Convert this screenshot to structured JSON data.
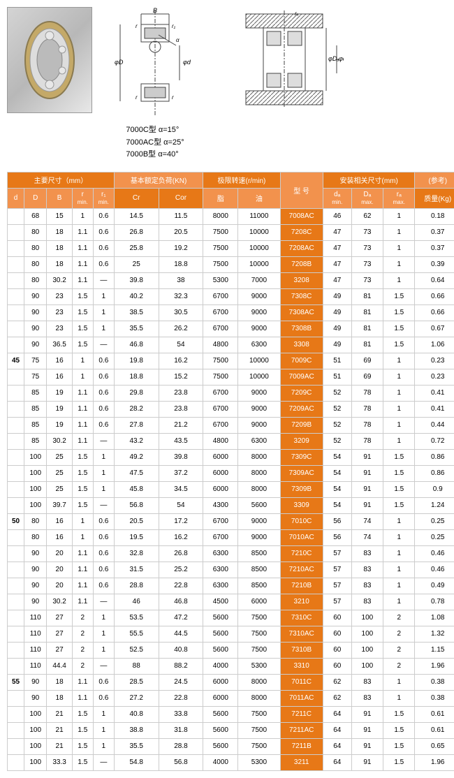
{
  "angles": [
    {
      "type": "7000C型",
      "angle": "α=15°"
    },
    {
      "type": "7000AC型",
      "angle": "α=25°"
    },
    {
      "type": "7000B型",
      "angle": "α=40°"
    }
  ],
  "headerGroups": {
    "g1": "主要尺寸（mm）",
    "g2": "基本额定负荷(KN)",
    "g3": "极限转速(r/min)",
    "g4": "型 号",
    "g5": "安装相关尺寸(mm)",
    "g6": "(参考)"
  },
  "headers": {
    "d": "d",
    "D": "D",
    "B": "B",
    "rmin": "r",
    "r1min": "r₁",
    "cr": "Cr",
    "cor": "Cor",
    "grease": "脂",
    "oil": "油",
    "damin": "dₐ",
    "Damax": "Dₐ",
    "ramax": "rₐ",
    "mass": "质量(Kg)"
  },
  "sublabels": {
    "min": "min.",
    "max": "max."
  },
  "rows": [
    {
      "d": "",
      "D": "68",
      "B": "15",
      "r": "1",
      "r1": "0.6",
      "cr": "14.5",
      "cor": "11.5",
      "g": "8000",
      "o": "11000",
      "m": "7008AC",
      "da": "46",
      "Da": "62",
      "ra": "1",
      "kg": "0.18"
    },
    {
      "d": "",
      "D": "80",
      "B": "18",
      "r": "1.1",
      "r1": "0.6",
      "cr": "26.8",
      "cor": "20.5",
      "g": "7500",
      "o": "10000",
      "m": "7208C",
      "da": "47",
      "Da": "73",
      "ra": "1",
      "kg": "0.37"
    },
    {
      "d": "",
      "D": "80",
      "B": "18",
      "r": "1.1",
      "r1": "0.6",
      "cr": "25.8",
      "cor": "19.2",
      "g": "7500",
      "o": "10000",
      "m": "7208AC",
      "da": "47",
      "Da": "73",
      "ra": "1",
      "kg": "0.37"
    },
    {
      "d": "",
      "D": "80",
      "B": "18",
      "r": "1.1",
      "r1": "0.6",
      "cr": "25",
      "cor": "18.8",
      "g": "7500",
      "o": "10000",
      "m": "7208B",
      "da": "47",
      "Da": "73",
      "ra": "1",
      "kg": "0.39"
    },
    {
      "d": "",
      "D": "80",
      "B": "30.2",
      "r": "1.1",
      "r1": "—",
      "cr": "39.8",
      "cor": "38",
      "g": "5300",
      "o": "7000",
      "m": "3208",
      "da": "47",
      "Da": "73",
      "ra": "1",
      "kg": "0.64"
    },
    {
      "d": "",
      "D": "90",
      "B": "23",
      "r": "1.5",
      "r1": "1",
      "cr": "40.2",
      "cor": "32.3",
      "g": "6700",
      "o": "9000",
      "m": "7308C",
      "da": "49",
      "Da": "81",
      "ra": "1.5",
      "kg": "0.66"
    },
    {
      "d": "",
      "D": "90",
      "B": "23",
      "r": "1.5",
      "r1": "1",
      "cr": "38.5",
      "cor": "30.5",
      "g": "6700",
      "o": "9000",
      "m": "7308AC",
      "da": "49",
      "Da": "81",
      "ra": "1.5",
      "kg": "0.66"
    },
    {
      "d": "",
      "D": "90",
      "B": "23",
      "r": "1.5",
      "r1": "1",
      "cr": "35.5",
      "cor": "26.2",
      "g": "6700",
      "o": "9000",
      "m": "7308B",
      "da": "49",
      "Da": "81",
      "ra": "1.5",
      "kg": "0.67"
    },
    {
      "d": "",
      "D": "90",
      "B": "36.5",
      "r": "1.5",
      "r1": "—",
      "cr": "46.8",
      "cor": "54",
      "g": "4800",
      "o": "6300",
      "m": "3308",
      "da": "49",
      "Da": "81",
      "ra": "1.5",
      "kg": "1.06"
    },
    {
      "d": "45",
      "D": "75",
      "B": "16",
      "r": "1",
      "r1": "0.6",
      "cr": "19.8",
      "cor": "16.2",
      "g": "7500",
      "o": "10000",
      "m": "7009C",
      "da": "51",
      "Da": "69",
      "ra": "1",
      "kg": "0.23"
    },
    {
      "d": "",
      "D": "75",
      "B": "16",
      "r": "1",
      "r1": "0.6",
      "cr": "18.8",
      "cor": "15.2",
      "g": "7500",
      "o": "10000",
      "m": "7009AC",
      "da": "51",
      "Da": "69",
      "ra": "1",
      "kg": "0.23"
    },
    {
      "d": "",
      "D": "85",
      "B": "19",
      "r": "1.1",
      "r1": "0.6",
      "cr": "29.8",
      "cor": "23.8",
      "g": "6700",
      "o": "9000",
      "m": "7209C",
      "da": "52",
      "Da": "78",
      "ra": "1",
      "kg": "0.41"
    },
    {
      "d": "",
      "D": "85",
      "B": "19",
      "r": "1.1",
      "r1": "0.6",
      "cr": "28.2",
      "cor": "23.8",
      "g": "6700",
      "o": "9000",
      "m": "7209AC",
      "da": "52",
      "Da": "78",
      "ra": "1",
      "kg": "0.41"
    },
    {
      "d": "",
      "D": "85",
      "B": "19",
      "r": "1.1",
      "r1": "0.6",
      "cr": "27.8",
      "cor": "21.2",
      "g": "6700",
      "o": "9000",
      "m": "7209B",
      "da": "52",
      "Da": "78",
      "ra": "1",
      "kg": "0.44"
    },
    {
      "d": "",
      "D": "85",
      "B": "30.2",
      "r": "1.1",
      "r1": "—",
      "cr": "43.2",
      "cor": "43.5",
      "g": "4800",
      "o": "6300",
      "m": "3209",
      "da": "52",
      "Da": "78",
      "ra": "1",
      "kg": "0.72"
    },
    {
      "d": "",
      "D": "100",
      "B": "25",
      "r": "1.5",
      "r1": "1",
      "cr": "49.2",
      "cor": "39.8",
      "g": "6000",
      "o": "8000",
      "m": "7309C",
      "da": "54",
      "Da": "91",
      "ra": "1.5",
      "kg": "0.86"
    },
    {
      "d": "",
      "D": "100",
      "B": "25",
      "r": "1.5",
      "r1": "1",
      "cr": "47.5",
      "cor": "37.2",
      "g": "6000",
      "o": "8000",
      "m": "7309AC",
      "da": "54",
      "Da": "91",
      "ra": "1.5",
      "kg": "0.86"
    },
    {
      "d": "",
      "D": "100",
      "B": "25",
      "r": "1.5",
      "r1": "1",
      "cr": "45.8",
      "cor": "34.5",
      "g": "6000",
      "o": "8000",
      "m": "7309B",
      "da": "54",
      "Da": "91",
      "ra": "1.5",
      "kg": "0.9"
    },
    {
      "d": "",
      "D": "100",
      "B": "39.7",
      "r": "1.5",
      "r1": "—",
      "cr": "56.8",
      "cor": "54",
      "g": "4300",
      "o": "5600",
      "m": "3309",
      "da": "54",
      "Da": "91",
      "ra": "1.5",
      "kg": "1.24"
    },
    {
      "d": "50",
      "D": "80",
      "B": "16",
      "r": "1",
      "r1": "0.6",
      "cr": "20.5",
      "cor": "17.2",
      "g": "6700",
      "o": "9000",
      "m": "7010C",
      "da": "56",
      "Da": "74",
      "ra": "1",
      "kg": "0.25"
    },
    {
      "d": "",
      "D": "80",
      "B": "16",
      "r": "1",
      "r1": "0.6",
      "cr": "19.5",
      "cor": "16.2",
      "g": "6700",
      "o": "9000",
      "m": "7010AC",
      "da": "56",
      "Da": "74",
      "ra": "1",
      "kg": "0.25"
    },
    {
      "d": "",
      "D": "90",
      "B": "20",
      "r": "1.1",
      "r1": "0.6",
      "cr": "32.8",
      "cor": "26.8",
      "g": "6300",
      "o": "8500",
      "m": "7210C",
      "da": "57",
      "Da": "83",
      "ra": "1",
      "kg": "0.46"
    },
    {
      "d": "",
      "D": "90",
      "B": "20",
      "r": "1.1",
      "r1": "0.6",
      "cr": "31.5",
      "cor": "25.2",
      "g": "6300",
      "o": "8500",
      "m": "7210AC",
      "da": "57",
      "Da": "83",
      "ra": "1",
      "kg": "0.46"
    },
    {
      "d": "",
      "D": "90",
      "B": "20",
      "r": "1.1",
      "r1": "0.6",
      "cr": "28.8",
      "cor": "22.8",
      "g": "6300",
      "o": "8500",
      "m": "7210B",
      "da": "57",
      "Da": "83",
      "ra": "1",
      "kg": "0.49"
    },
    {
      "d": "",
      "D": "90",
      "B": "30.2",
      "r": "1.1",
      "r1": "—",
      "cr": "46",
      "cor": "46.8",
      "g": "4500",
      "o": "6000",
      "m": "3210",
      "da": "57",
      "Da": "83",
      "ra": "1",
      "kg": "0.78"
    },
    {
      "d": "",
      "D": "110",
      "B": "27",
      "r": "2",
      "r1": "1",
      "cr": "53.5",
      "cor": "47.2",
      "g": "5600",
      "o": "7500",
      "m": "7310C",
      "da": "60",
      "Da": "100",
      "ra": "2",
      "kg": "1.08"
    },
    {
      "d": "",
      "D": "110",
      "B": "27",
      "r": "2",
      "r1": "1",
      "cr": "55.5",
      "cor": "44.5",
      "g": "5600",
      "o": "7500",
      "m": "7310AC",
      "da": "60",
      "Da": "100",
      "ra": "2",
      "kg": "1.32"
    },
    {
      "d": "",
      "D": "110",
      "B": "27",
      "r": "2",
      "r1": "1",
      "cr": "52.5",
      "cor": "40.8",
      "g": "5600",
      "o": "7500",
      "m": "7310B",
      "da": "60",
      "Da": "100",
      "ra": "2",
      "kg": "1.15"
    },
    {
      "d": "",
      "D": "110",
      "B": "44.4",
      "r": "2",
      "r1": "—",
      "cr": "88",
      "cor": "88.2",
      "g": "4000",
      "o": "5300",
      "m": "3310",
      "da": "60",
      "Da": "100",
      "ra": "2",
      "kg": "1.96"
    },
    {
      "d": "55",
      "D": "90",
      "B": "18",
      "r": "1.1",
      "r1": "0.6",
      "cr": "28.5",
      "cor": "24.5",
      "g": "6000",
      "o": "8000",
      "m": "7011C",
      "da": "62",
      "Da": "83",
      "ra": "1",
      "kg": "0.38"
    },
    {
      "d": "",
      "D": "90",
      "B": "18",
      "r": "1.1",
      "r1": "0.6",
      "cr": "27.2",
      "cor": "22.8",
      "g": "6000",
      "o": "8000",
      "m": "7011AC",
      "da": "62",
      "Da": "83",
      "ra": "1",
      "kg": "0.38"
    },
    {
      "d": "",
      "D": "100",
      "B": "21",
      "r": "1.5",
      "r1": "1",
      "cr": "40.8",
      "cor": "33.8",
      "g": "5600",
      "o": "7500",
      "m": "7211C",
      "da": "64",
      "Da": "91",
      "ra": "1.5",
      "kg": "0.61"
    },
    {
      "d": "",
      "D": "100",
      "B": "21",
      "r": "1.5",
      "r1": "1",
      "cr": "38.8",
      "cor": "31.8",
      "g": "5600",
      "o": "7500",
      "m": "7211AC",
      "da": "64",
      "Da": "91",
      "ra": "1.5",
      "kg": "0.61"
    },
    {
      "d": "",
      "D": "100",
      "B": "21",
      "r": "1.5",
      "r1": "1",
      "cr": "35.5",
      "cor": "28.8",
      "g": "5600",
      "o": "7500",
      "m": "7211B",
      "da": "64",
      "Da": "91",
      "ra": "1.5",
      "kg": "0.65"
    },
    {
      "d": "",
      "D": "100",
      "B": "33.3",
      "r": "1.5",
      "r1": "—",
      "cr": "54.8",
      "cor": "56.8",
      "g": "4000",
      "o": "5300",
      "m": "3211",
      "da": "64",
      "Da": "91",
      "ra": "1.5",
      "kg": "1.96"
    }
  ]
}
